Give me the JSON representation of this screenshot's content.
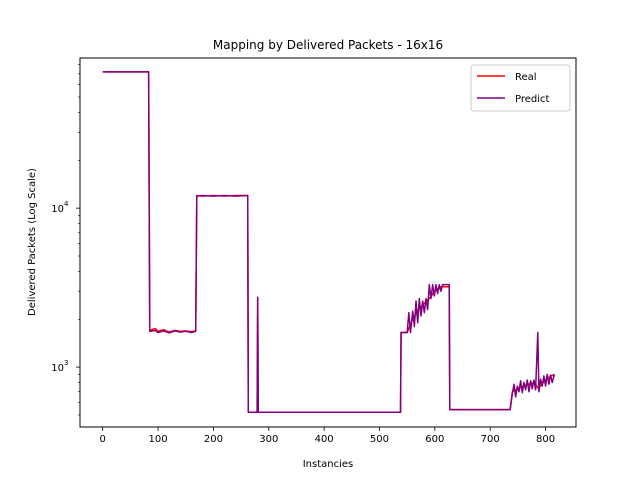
{
  "chart_data": {
    "type": "line",
    "title": "Mapping by Delivered Packets - 16x16",
    "xlabel": "Instancies",
    "ylabel": "Delivered Packets (Log Scale)",
    "xlim": [
      -41,
      855
    ],
    "ylim": [
      420,
      88000
    ],
    "yscale": "log",
    "grid": false,
    "legend": "top-right",
    "x_ticks": [
      0,
      100,
      200,
      300,
      400,
      500,
      600,
      700,
      800
    ],
    "y_ticks": [
      {
        "value": 1000,
        "base": "10",
        "exp": "3"
      },
      {
        "value": 10000,
        "base": "10",
        "exp": "4"
      }
    ],
    "series": [
      {
        "name": "Real",
        "color": "#ff0000",
        "points": [
          [
            0,
            72000
          ],
          [
            83,
            72000
          ],
          [
            85,
            1700
          ],
          [
            95,
            1750
          ],
          [
            100,
            1680
          ],
          [
            110,
            1720
          ],
          [
            120,
            1660
          ],
          [
            130,
            1700
          ],
          [
            140,
            1680
          ],
          [
            150,
            1690
          ],
          [
            160,
            1670
          ],
          [
            168,
            1690
          ],
          [
            170,
            12000
          ],
          [
            180,
            11900
          ],
          [
            200,
            12000
          ],
          [
            220,
            11900
          ],
          [
            240,
            12000
          ],
          [
            262,
            12000
          ],
          [
            263,
            520
          ],
          [
            276,
            520
          ],
          [
            279,
            520
          ],
          [
            280,
            2700
          ],
          [
            281,
            520
          ],
          [
            300,
            520
          ],
          [
            400,
            520
          ],
          [
            538,
            520
          ],
          [
            539,
            1650
          ],
          [
            550,
            1650
          ],
          [
            560,
            2000
          ],
          [
            570,
            2300
          ],
          [
            580,
            2500
          ],
          [
            590,
            2700
          ],
          [
            600,
            3000
          ],
          [
            610,
            3200
          ],
          [
            626,
            3200
          ],
          [
            627,
            540
          ],
          [
            650,
            540
          ],
          [
            700,
            540
          ],
          [
            736,
            540
          ],
          [
            740,
            700
          ],
          [
            750,
            730
          ],
          [
            760,
            760
          ],
          [
            770,
            780
          ],
          [
            780,
            800
          ],
          [
            786,
            740
          ],
          [
            790,
            760
          ],
          [
            800,
            830
          ],
          [
            810,
            880
          ],
          [
            816,
            900
          ]
        ]
      },
      {
        "name": "Predict",
        "color": "#800080",
        "points": [
          [
            0,
            72000
          ],
          [
            83,
            72000
          ],
          [
            85,
            1680
          ],
          [
            95,
            1700
          ],
          [
            100,
            1650
          ],
          [
            110,
            1690
          ],
          [
            120,
            1640
          ],
          [
            130,
            1690
          ],
          [
            140,
            1660
          ],
          [
            150,
            1680
          ],
          [
            160,
            1650
          ],
          [
            168,
            1680
          ],
          [
            170,
            11900
          ],
          [
            180,
            12000
          ],
          [
            200,
            11900
          ],
          [
            220,
            12000
          ],
          [
            240,
            11900
          ],
          [
            262,
            12000
          ],
          [
            263,
            520
          ],
          [
            276,
            520
          ],
          [
            279,
            520
          ],
          [
            280,
            2750
          ],
          [
            281,
            520
          ],
          [
            300,
            520
          ],
          [
            400,
            520
          ],
          [
            538,
            520
          ],
          [
            539,
            1650
          ],
          [
            550,
            1650
          ],
          [
            553,
            2200
          ],
          [
            556,
            1650
          ],
          [
            560,
            2250
          ],
          [
            563,
            1800
          ],
          [
            566,
            2600
          ],
          [
            569,
            1900
          ],
          [
            572,
            2700
          ],
          [
            575,
            2100
          ],
          [
            578,
            2600
          ],
          [
            581,
            2200
          ],
          [
            584,
            2700
          ],
          [
            587,
            2300
          ],
          [
            590,
            3300
          ],
          [
            593,
            2700
          ],
          [
            596,
            3300
          ],
          [
            599,
            2800
          ],
          [
            602,
            3300
          ],
          [
            605,
            2900
          ],
          [
            608,
            3300
          ],
          [
            611,
            3000
          ],
          [
            614,
            3300
          ],
          [
            626,
            3300
          ],
          [
            627,
            540
          ],
          [
            650,
            540
          ],
          [
            700,
            540
          ],
          [
            736,
            540
          ],
          [
            740,
            680
          ],
          [
            743,
            780
          ],
          [
            746,
            650
          ],
          [
            749,
            760
          ],
          [
            752,
            700
          ],
          [
            755,
            820
          ],
          [
            758,
            690
          ],
          [
            761,
            800
          ],
          [
            764,
            720
          ],
          [
            767,
            830
          ],
          [
            770,
            700
          ],
          [
            773,
            820
          ],
          [
            776,
            730
          ],
          [
            779,
            830
          ],
          [
            782,
            720
          ],
          [
            786,
            1650
          ],
          [
            788,
            700
          ],
          [
            791,
            840
          ],
          [
            794,
            760
          ],
          [
            797,
            880
          ],
          [
            800,
            760
          ],
          [
            803,
            900
          ],
          [
            806,
            780
          ],
          [
            809,
            890
          ],
          [
            812,
            800
          ],
          [
            816,
            900
          ]
        ]
      }
    ]
  }
}
